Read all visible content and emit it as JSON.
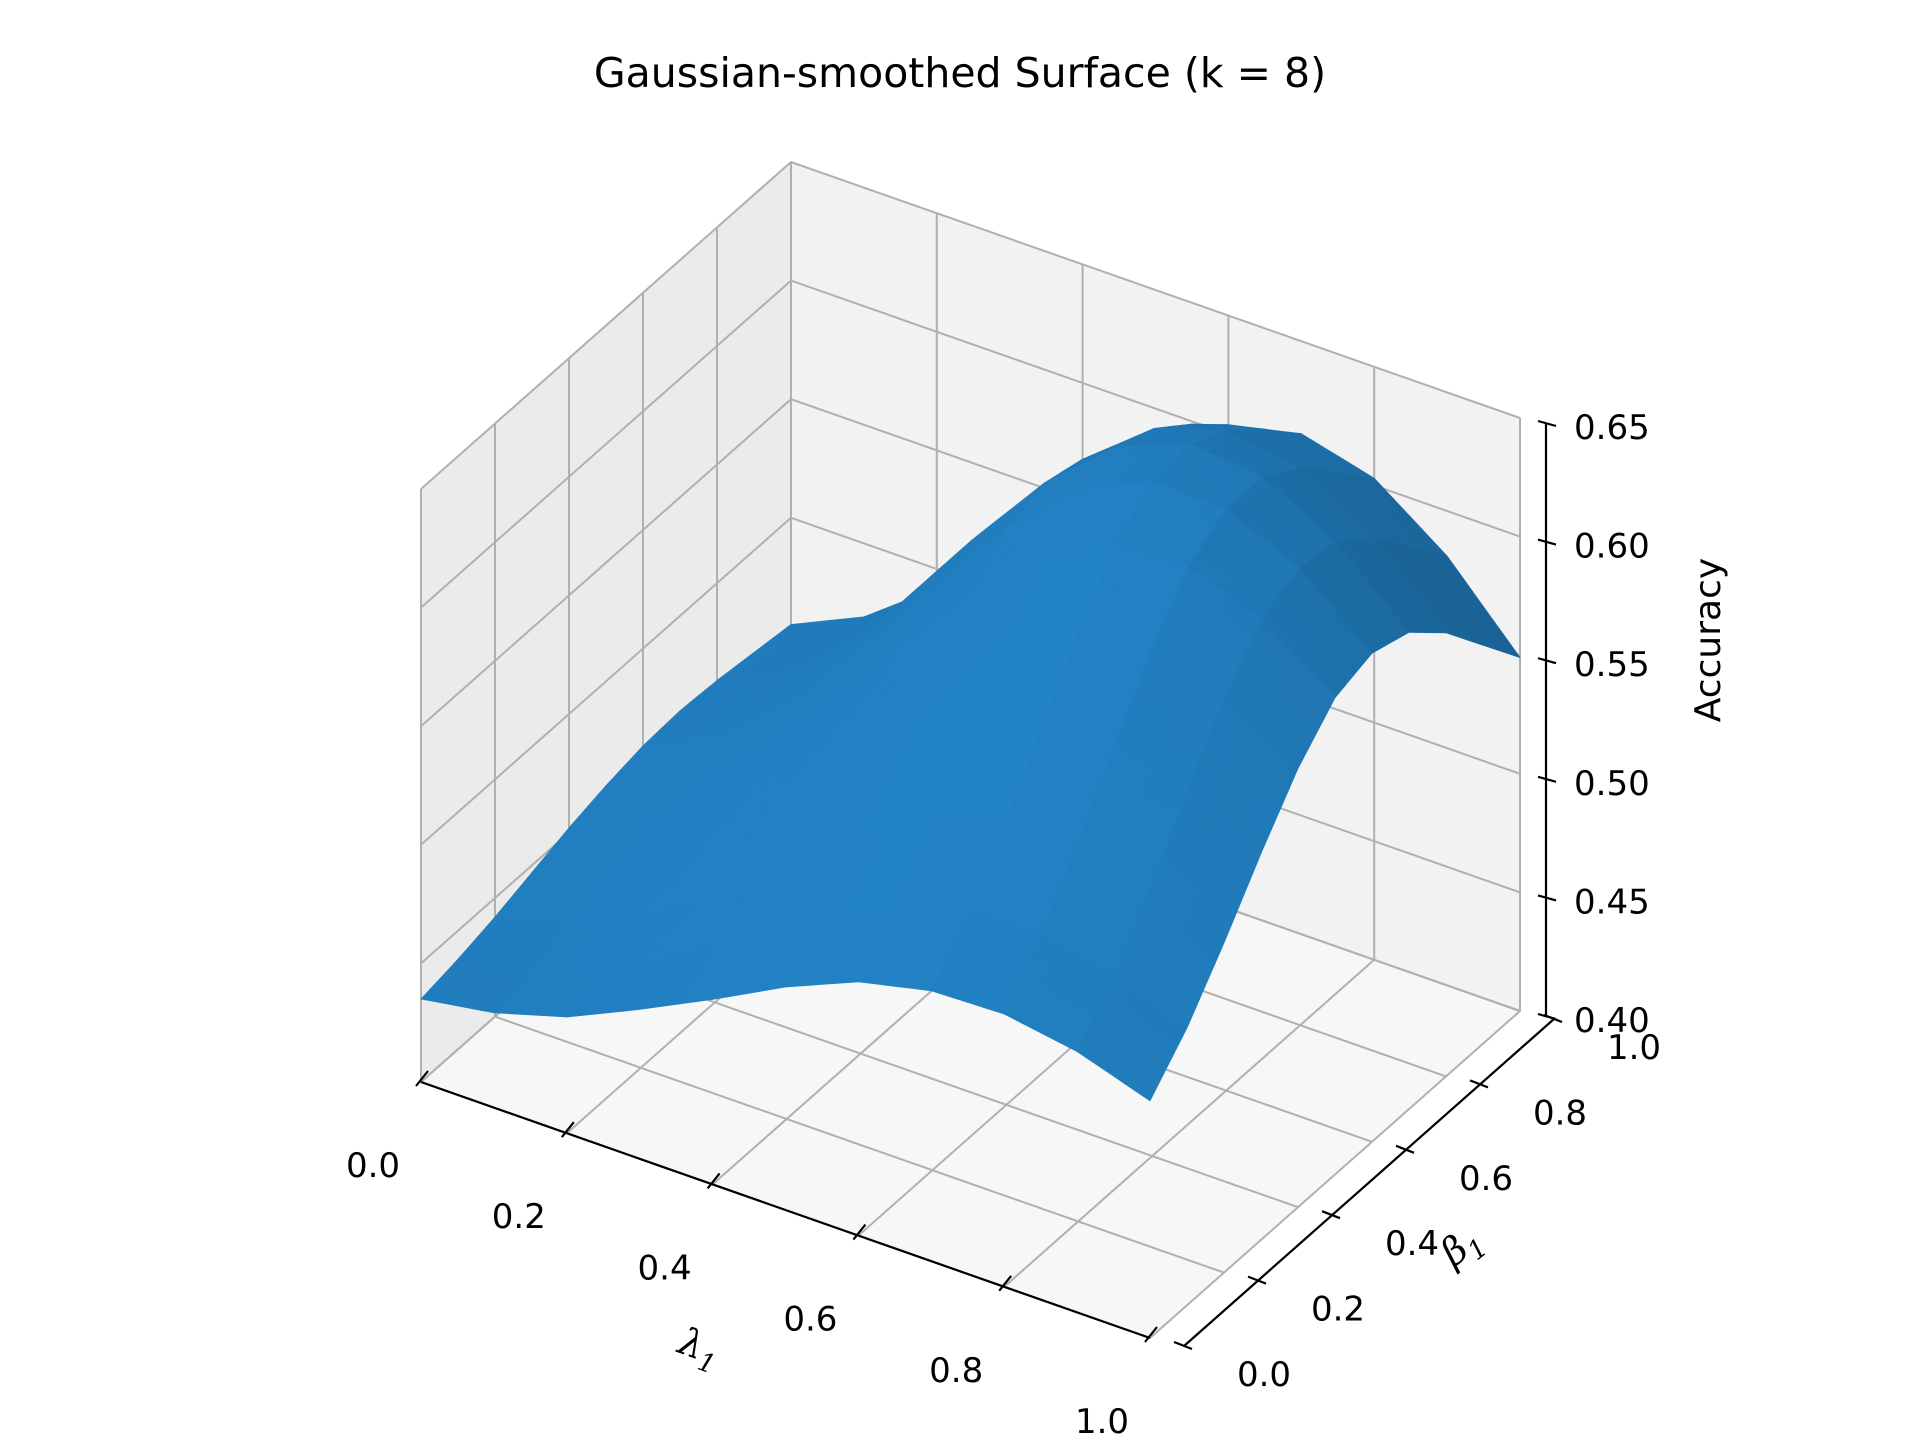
{
  "chart_data": {
    "type": "surface",
    "title": "Gaussian-smoothed Surface (k = 8)",
    "xlabel": "λ",
    "xlabel_sub": "1",
    "ylabel": "β",
    "ylabel_sub": "1",
    "zlabel": "Accuracy",
    "xlim": [
      0,
      1
    ],
    "ylim": [
      0,
      1
    ],
    "zlim": [
      0.4,
      0.65
    ],
    "x_ticks": [
      "0.0",
      "0.2",
      "0.4",
      "0.6",
      "0.8",
      "1.0"
    ],
    "y_ticks": [
      "0.0",
      "0.2",
      "0.4",
      "0.6",
      "0.8",
      "1.0"
    ],
    "z_ticks": [
      "0.40",
      "0.45",
      "0.50",
      "0.55",
      "0.60",
      "0.65"
    ],
    "surface_color": "#1f77b4",
    "grid": true,
    "x": [
      0.0,
      0.1,
      0.2,
      0.3,
      0.4,
      0.5,
      0.6,
      0.7,
      0.8,
      0.9,
      1.0
    ],
    "y": [
      0.0,
      0.1,
      0.2,
      0.3,
      0.4,
      0.5,
      0.6,
      0.7,
      0.8,
      0.9,
      1.0
    ],
    "z": [
      [
        0.435,
        0.44,
        0.449,
        0.463,
        0.478,
        0.494,
        0.507,
        0.514,
        0.515,
        0.51,
        0.5
      ],
      [
        0.438,
        0.444,
        0.455,
        0.471,
        0.49,
        0.508,
        0.524,
        0.533,
        0.534,
        0.528,
        0.517
      ],
      [
        0.442,
        0.449,
        0.463,
        0.482,
        0.505,
        0.527,
        0.546,
        0.557,
        0.559,
        0.552,
        0.539
      ],
      [
        0.447,
        0.456,
        0.473,
        0.496,
        0.523,
        0.549,
        0.571,
        0.584,
        0.587,
        0.579,
        0.563
      ],
      [
        0.452,
        0.463,
        0.483,
        0.51,
        0.541,
        0.571,
        0.596,
        0.611,
        0.614,
        0.604,
        0.585
      ],
      [
        0.456,
        0.469,
        0.492,
        0.523,
        0.558,
        0.591,
        0.618,
        0.633,
        0.635,
        0.623,
        0.601
      ],
      [
        0.459,
        0.474,
        0.499,
        0.533,
        0.57,
        0.605,
        0.632,
        0.646,
        0.645,
        0.631,
        0.606
      ],
      [
        0.46,
        0.476,
        0.502,
        0.537,
        0.575,
        0.61,
        0.636,
        0.648,
        0.645,
        0.628,
        0.601
      ],
      [
        0.459,
        0.475,
        0.501,
        0.535,
        0.572,
        0.606,
        0.63,
        0.64,
        0.635,
        0.616,
        0.587
      ],
      [
        0.457,
        0.472,
        0.497,
        0.529,
        0.564,
        0.596,
        0.618,
        0.626,
        0.619,
        0.599,
        0.568
      ],
      [
        0.455,
        0.469,
        0.492,
        0.522,
        0.555,
        0.584,
        0.604,
        0.611,
        0.603,
        0.581,
        0.549
      ]
    ]
  }
}
